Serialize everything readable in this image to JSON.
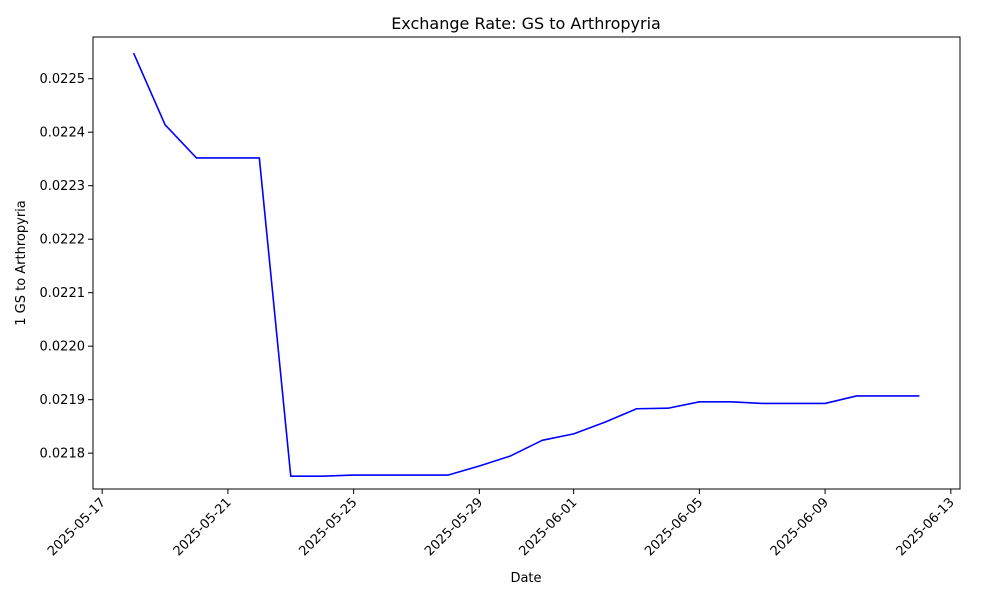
{
  "chart_data": {
    "type": "line",
    "title": "Exchange Rate: GS to Arthropyria",
    "xlabel": "Date",
    "ylabel": "1 GS to Arthropyria",
    "x_range": [
      "2025-05-16T17:00:00",
      "2025-06-13T07:00:00"
    ],
    "ylim": [
      0.021733,
      0.022578
    ],
    "xticks": [
      "2025-05-17",
      "2025-05-21",
      "2025-05-25",
      "2025-05-29",
      "2025-06-01",
      "2025-06-05",
      "2025-06-09",
      "2025-06-13"
    ],
    "yticks": [
      0.0218,
      0.0219,
      0.022,
      0.0221,
      0.0222,
      0.0223,
      0.0224,
      0.0225
    ],
    "grid": false,
    "series": [
      {
        "color": "#0000ff",
        "points": [
          {
            "x": "2025-05-18",
            "y": 0.022548
          },
          {
            "x": "2025-05-19",
            "y": 0.022414
          },
          {
            "x": "2025-05-20",
            "y": 0.022352
          },
          {
            "x": "2025-05-21",
            "y": 0.022352
          },
          {
            "x": "2025-05-22",
            "y": 0.022352
          },
          {
            "x": "2025-05-23",
            "y": 0.021757
          },
          {
            "x": "2025-05-24",
            "y": 0.021757
          },
          {
            "x": "2025-05-25",
            "y": 0.021759
          },
          {
            "x": "2025-05-26",
            "y": 0.021759
          },
          {
            "x": "2025-05-27",
            "y": 0.021759
          },
          {
            "x": "2025-05-28",
            "y": 0.021759
          },
          {
            "x": "2025-05-29",
            "y": 0.021776
          },
          {
            "x": "2025-05-30",
            "y": 0.021795
          },
          {
            "x": "2025-05-31",
            "y": 0.021824
          },
          {
            "x": "2025-06-01",
            "y": 0.021836
          },
          {
            "x": "2025-06-02",
            "y": 0.021858
          },
          {
            "x": "2025-06-03",
            "y": 0.021883
          },
          {
            "x": "2025-06-04",
            "y": 0.021884
          },
          {
            "x": "2025-06-05",
            "y": 0.021896
          },
          {
            "x": "2025-06-06",
            "y": 0.021896
          },
          {
            "x": "2025-06-07",
            "y": 0.021893
          },
          {
            "x": "2025-06-08",
            "y": 0.021893
          },
          {
            "x": "2025-06-09",
            "y": 0.021893
          },
          {
            "x": "2025-06-10",
            "y": 0.021907
          },
          {
            "x": "2025-06-11",
            "y": 0.021907
          },
          {
            "x": "2025-06-12",
            "y": 0.021907
          }
        ]
      }
    ]
  }
}
